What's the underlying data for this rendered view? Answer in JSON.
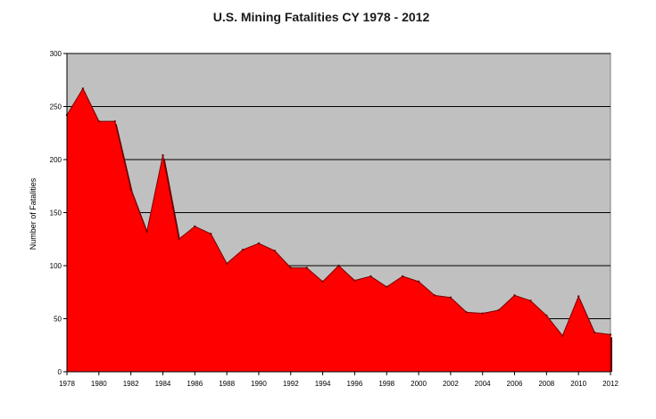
{
  "chart_data": {
    "type": "area",
    "title": "U.S. Mining Fatalities  CY 1978 - 2012",
    "xlabel": "",
    "ylabel": "Number of Fatalities",
    "ylim": [
      0,
      300
    ],
    "y_ticks": [
      0,
      50,
      100,
      150,
      200,
      250,
      300
    ],
    "y_tick_labels": [
      "0",
      "50",
      "100",
      "150",
      "200",
      "250",
      "300"
    ],
    "x_tick_labels": [
      "1978",
      "1980",
      "1982",
      "1984",
      "1986",
      "1988",
      "1990",
      "1992",
      "1994",
      "1996",
      "1998",
      "2000",
      "2002",
      "2004",
      "2006",
      "2008",
      "2010",
      "2012"
    ],
    "grid": true,
    "plot_background": "#c0c0c0",
    "series": [
      {
        "name": "Mining Fatalities",
        "color": "#ff0000",
        "x": [
          1978,
          1979,
          1980,
          1981,
          1982,
          1983,
          1984,
          1985,
          1986,
          1987,
          1988,
          1989,
          1990,
          1991,
          1992,
          1993,
          1994,
          1995,
          1996,
          1997,
          1998,
          1999,
          2000,
          2001,
          2002,
          2003,
          2004,
          2005,
          2006,
          2007,
          2008,
          2009,
          2010,
          2011,
          2012
        ],
        "values": [
          242,
          267,
          236,
          236,
          172,
          132,
          204,
          125,
          137,
          130,
          102,
          115,
          121,
          114,
          98,
          98,
          85,
          100,
          86,
          90,
          80,
          90,
          85,
          72,
          70,
          56,
          55,
          58,
          72,
          67,
          53,
          34,
          71,
          37,
          35
        ]
      }
    ]
  }
}
